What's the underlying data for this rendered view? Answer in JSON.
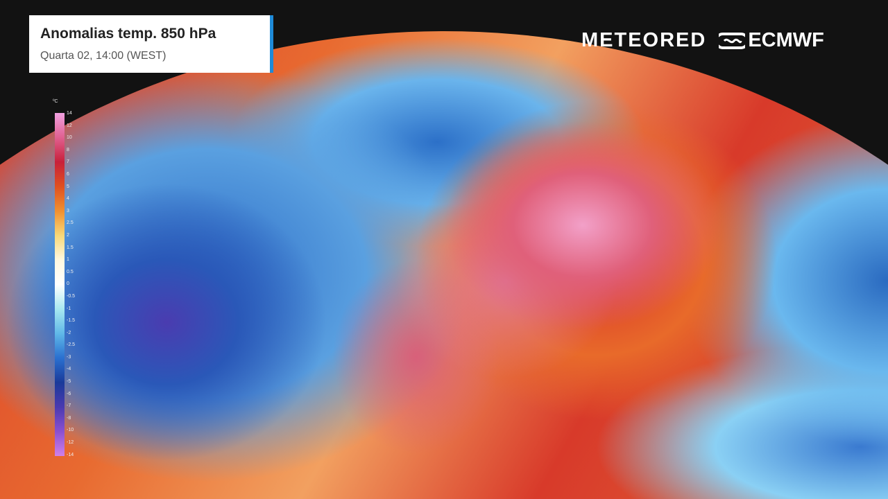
{
  "header": {
    "title": "Anomalias temp. 850 hPa",
    "subtitle": "Quarta 02, 14:00 (WEST)"
  },
  "logos": {
    "meteored": "METEORED",
    "ecmwf": "ECMWF"
  },
  "legend": {
    "unit": "ºC",
    "ticks": [
      "14",
      "12",
      "10",
      "8",
      "7",
      "6",
      "5",
      "4",
      "3",
      "2.5",
      "2",
      "1.5",
      "1",
      "0.5",
      "0",
      "-0.5",
      "-1",
      "-1.5",
      "-2",
      "-2.5",
      "-3",
      "-4",
      "-5",
      "-6",
      "-7",
      "-8",
      "-10",
      "-12",
      "-14"
    ]
  },
  "colors": {
    "accent": "#1e8ad8",
    "warm": "#d83a2a",
    "hot": "#e07a98",
    "cold": "#2a58b8"
  }
}
